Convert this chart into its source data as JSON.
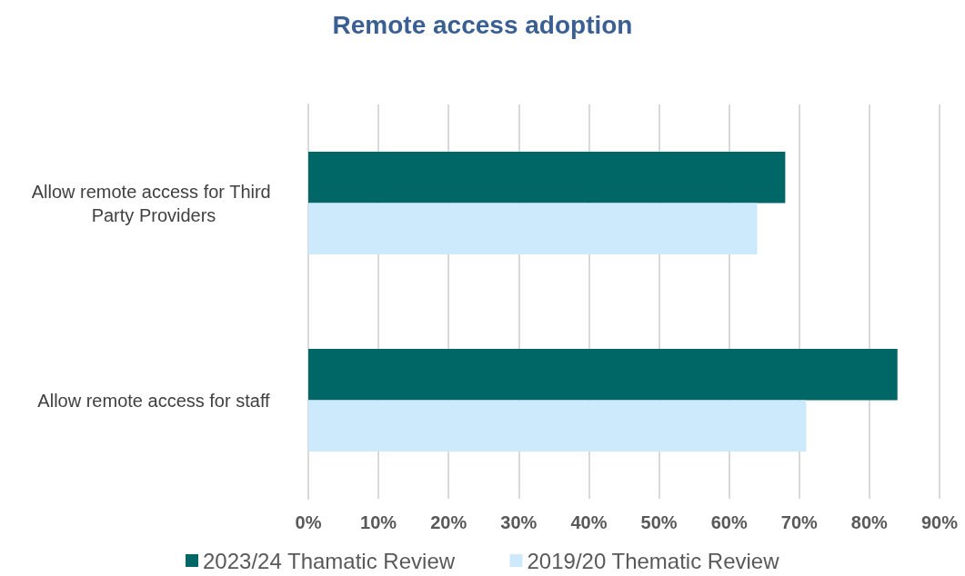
{
  "chart_data": {
    "type": "bar",
    "orientation": "horizontal",
    "title": "Remote access adoption",
    "categories": [
      "Allow remote access for Third Party Providers",
      "Allow remote access for staff"
    ],
    "series": [
      {
        "name": "2023/24 Thamatic Review",
        "color": "#006666",
        "values": [
          68,
          84
        ]
      },
      {
        "name": "2019/20 Thematic Review",
        "color": "#cceafb",
        "values": [
          64,
          71
        ]
      }
    ],
    "xlim": [
      0,
      90
    ],
    "xticks": [
      {
        "value": 0,
        "label": "0%"
      },
      {
        "value": 10,
        "label": "10%"
      },
      {
        "value": 20,
        "label": "20%"
      },
      {
        "value": 30,
        "label": "30%"
      },
      {
        "value": 40,
        "label": "40%"
      },
      {
        "value": 50,
        "label": "50%"
      },
      {
        "value": 60,
        "label": "60%"
      },
      {
        "value": 70,
        "label": "70%"
      },
      {
        "value": 80,
        "label": "80%"
      },
      {
        "value": 90,
        "label": "90%"
      }
    ],
    "grid": "x",
    "legend": "bottom"
  }
}
